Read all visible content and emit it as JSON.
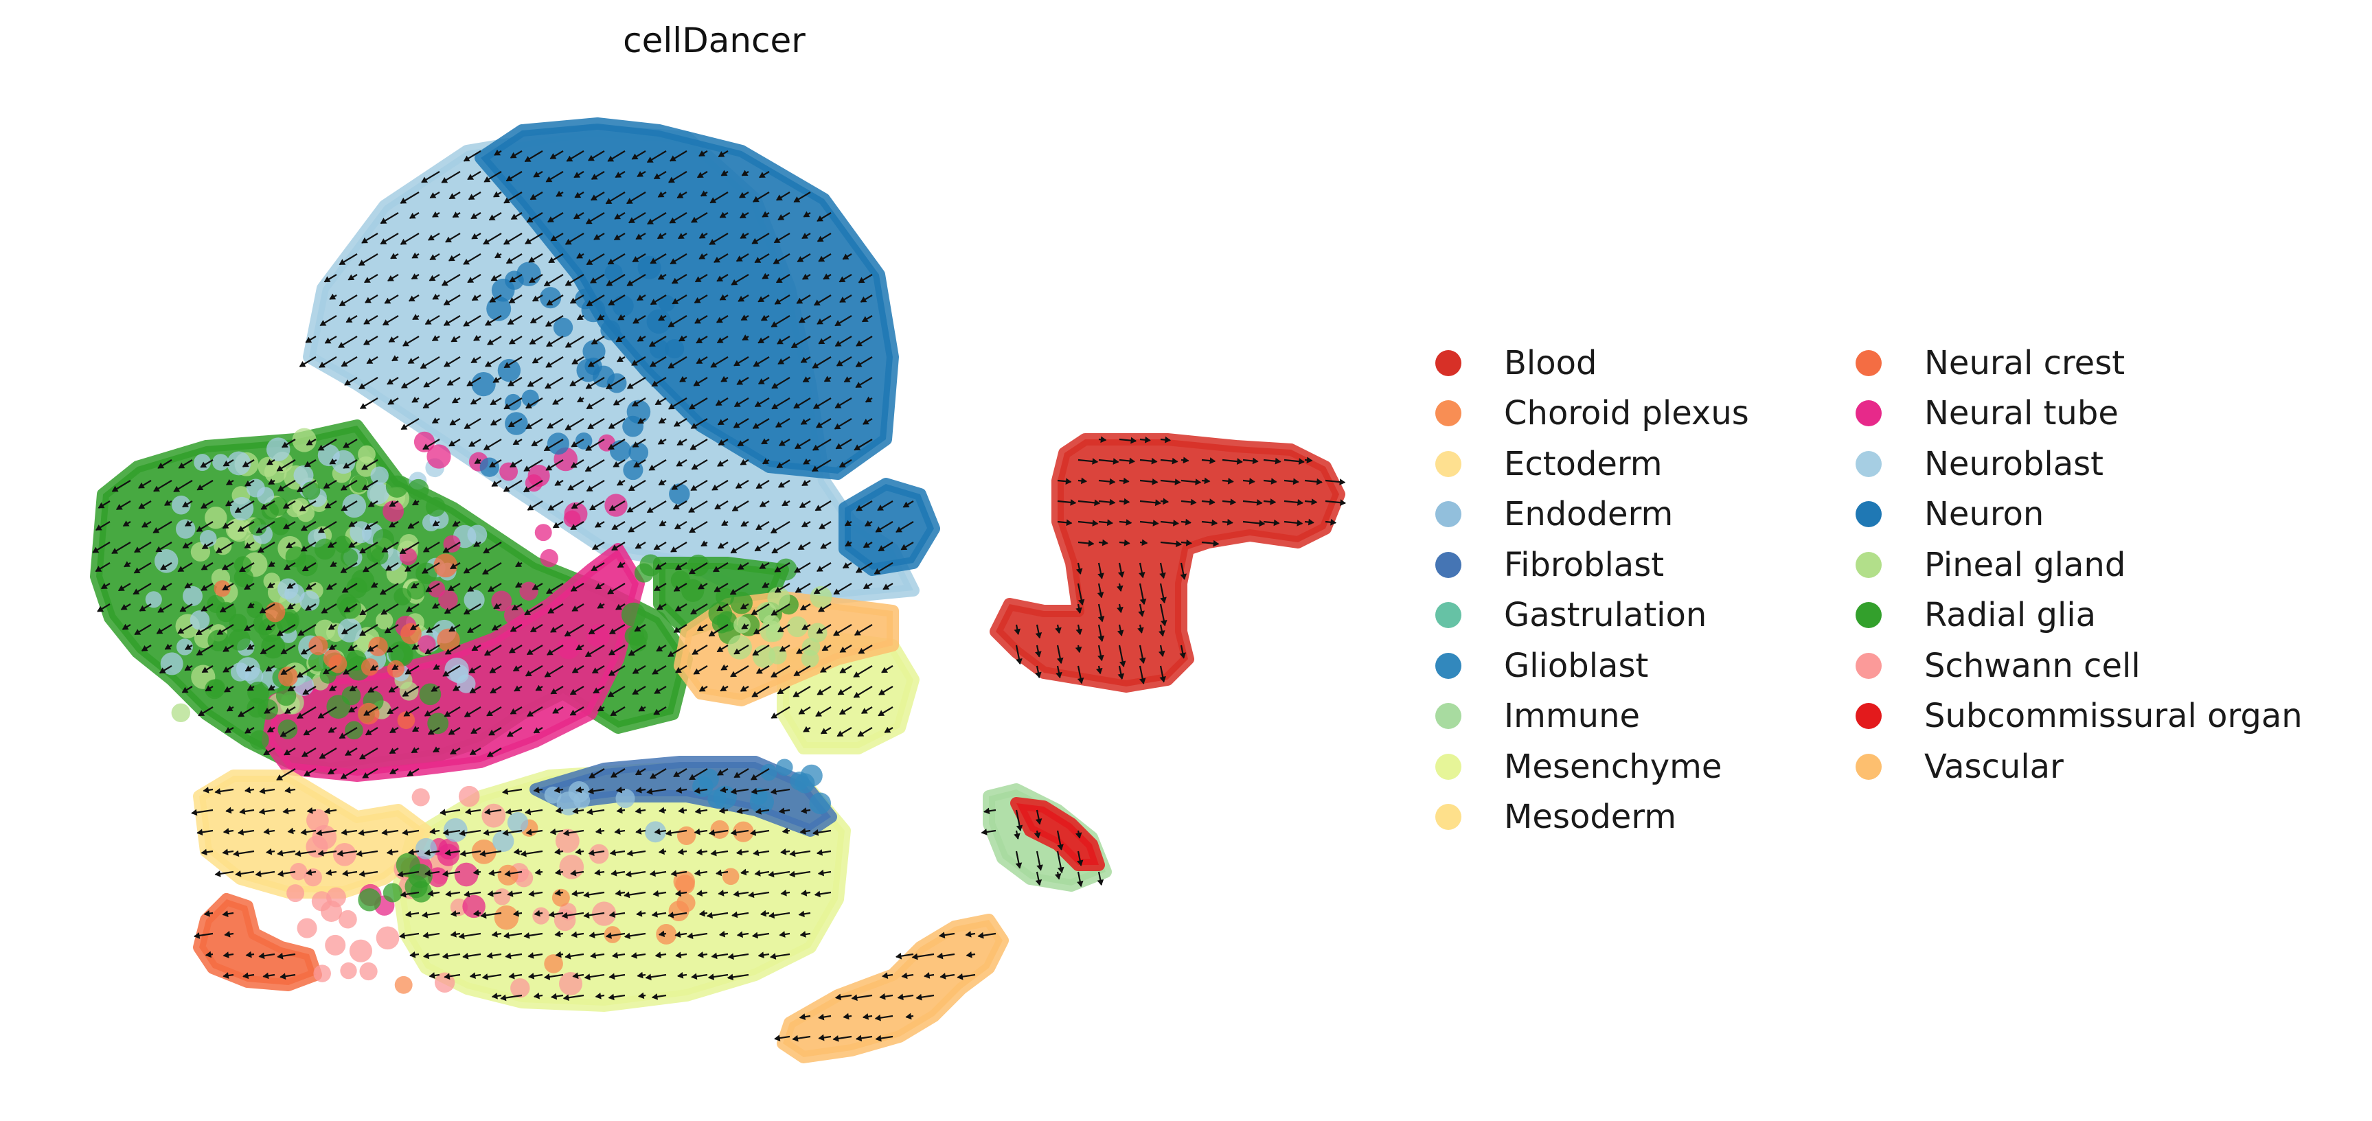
{
  "chart_data": {
    "type": "scatter",
    "title": "cellDancer",
    "xlabel": "",
    "ylabel": "",
    "axes_visible": false,
    "grid": false,
    "overlay": "velocity arrows on grid",
    "legend_placement": "right",
    "legend_columns": 2,
    "series": [
      {
        "name": "Blood",
        "color": "#d73027"
      },
      {
        "name": "Choroid plexus",
        "color": "#f88e54"
      },
      {
        "name": "Ectoderm",
        "color": "#fee090"
      },
      {
        "name": "Endoderm",
        "color": "#92bfdc"
      },
      {
        "name": "Fibroblast",
        "color": "#4575b4"
      },
      {
        "name": "Gastrulation",
        "color": "#66c2a5"
      },
      {
        "name": "Glioblast",
        "color": "#3288bd"
      },
      {
        "name": "Immune",
        "color": "#a8dba0"
      },
      {
        "name": "Mesenchyme",
        "color": "#e6f598"
      },
      {
        "name": "Mesoderm",
        "color": "#fee08b"
      },
      {
        "name": "Neural crest",
        "color": "#f46d43"
      },
      {
        "name": "Neural tube",
        "color": "#e7298a"
      },
      {
        "name": "Neuroblast",
        "color": "#a6cee3"
      },
      {
        "name": "Neuron",
        "color": "#1f78b4"
      },
      {
        "name": "Pineal gland",
        "color": "#b2df8a"
      },
      {
        "name": "Radial glia",
        "color": "#33a02c"
      },
      {
        "name": "Schwann cell",
        "color": "#fb9a99"
      },
      {
        "name": "Subcommissural organ",
        "color": "#e31a1c"
      },
      {
        "name": "Vascular",
        "color": "#fdbf6f"
      }
    ]
  }
}
